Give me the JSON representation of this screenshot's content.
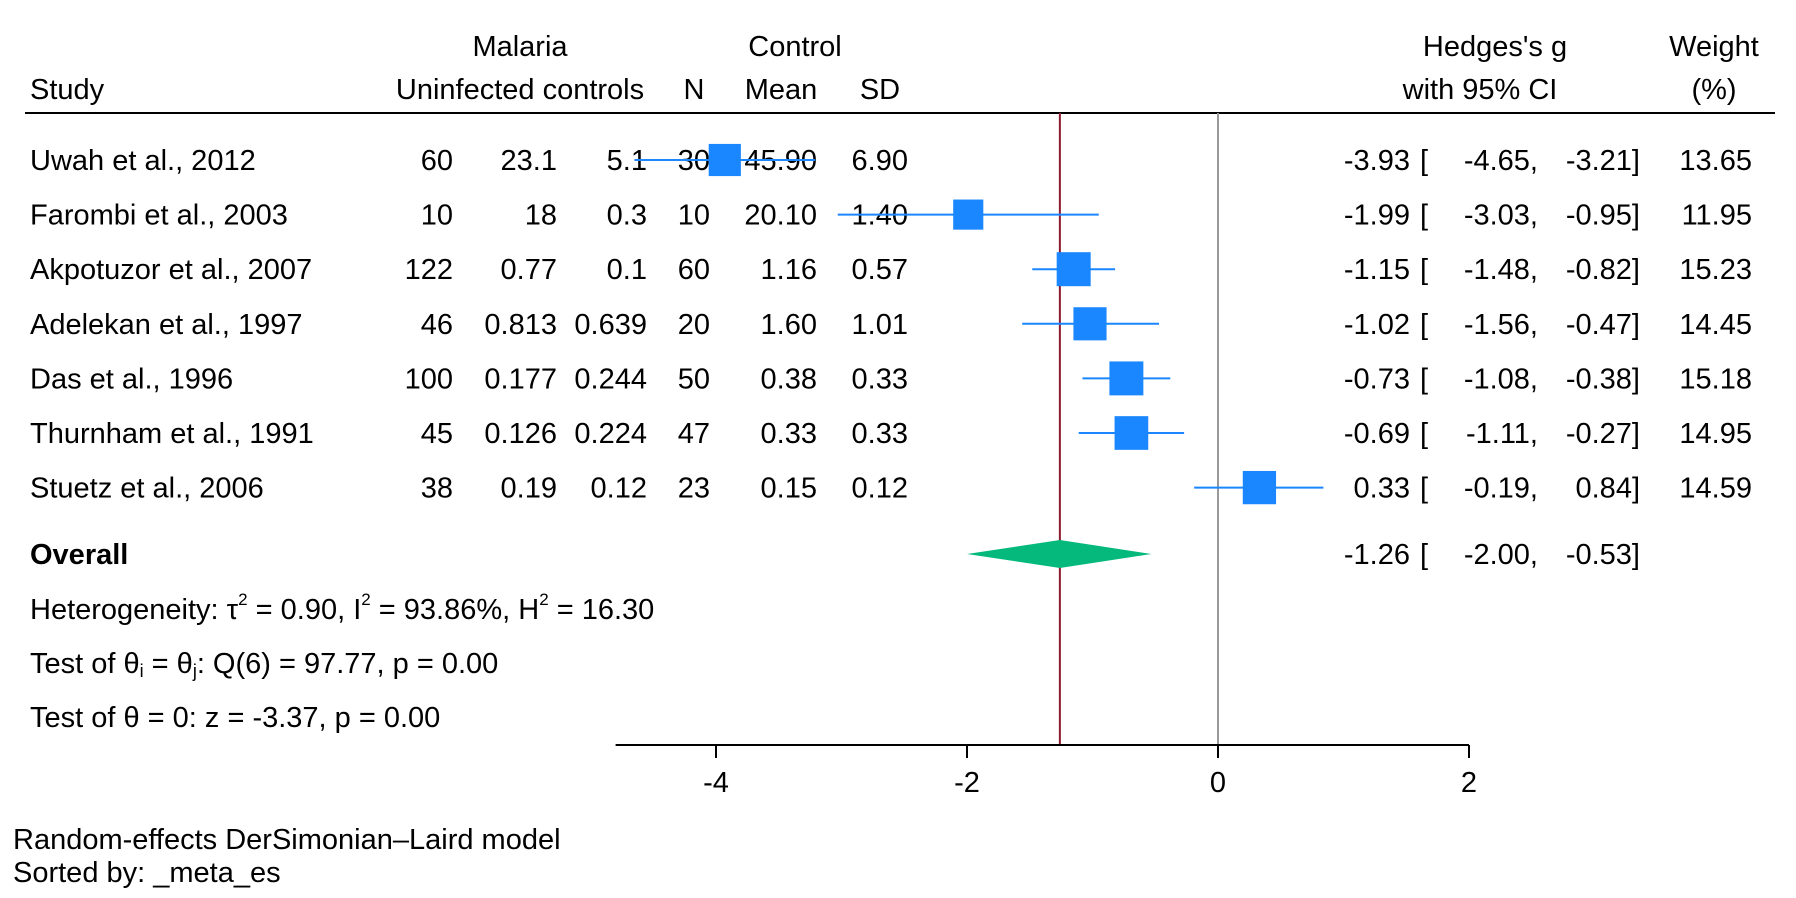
{
  "chart_data": {
    "type": "forest",
    "header": {
      "group1": "Malaria",
      "group2": "Control",
      "study": "Study",
      "col_uninfected": "Uninfected controls",
      "col_n": "N",
      "col_mean": "Mean",
      "col_sd": "SD",
      "effect_line1": "Hedges's g",
      "effect_line2": "with 95% CI",
      "weight_line1": "Weight",
      "weight_line2": "(%)"
    },
    "studies": [
      {
        "study": "Uwah et al., 2012",
        "n1": "60",
        "mean1": "23.1",
        "sd1": "5.1",
        "n2": "30",
        "mean2": "45.90",
        "sd2": "6.90",
        "es": -3.93,
        "lo": -4.65,
        "hi": -3.21,
        "es_text": "-3.93",
        "lo_text": "-4.65,",
        "hi_text": "-3.21]",
        "weight": 13.65,
        "weight_text": "13.65"
      },
      {
        "study": "Farombi et al., 2003",
        "n1": "10",
        "mean1": "18",
        "sd1": "0.3",
        "n2": "10",
        "mean2": "20.10",
        "sd2": "1.40",
        "es": -1.99,
        "lo": -3.03,
        "hi": -0.95,
        "es_text": "-1.99",
        "lo_text": "-3.03,",
        "hi_text": "-0.95]",
        "weight": 11.95,
        "weight_text": "11.95"
      },
      {
        "study": "Akpotuzor et al., 2007",
        "n1": "122",
        "mean1": "0.77",
        "sd1": "0.1",
        "n2": "60",
        "mean2": "1.16",
        "sd2": "0.57",
        "es": -1.15,
        "lo": -1.48,
        "hi": -0.82,
        "es_text": "-1.15",
        "lo_text": "-1.48,",
        "hi_text": "-0.82]",
        "weight": 15.23,
        "weight_text": "15.23"
      },
      {
        "study": "Adelekan et al., 1997",
        "n1": "46",
        "mean1": "0.813",
        "sd1": "0.639",
        "n2": "20",
        "mean2": "1.60",
        "sd2": "1.01",
        "es": -1.02,
        "lo": -1.56,
        "hi": -0.47,
        "es_text": "-1.02",
        "lo_text": "-1.56,",
        "hi_text": "-0.47]",
        "weight": 14.45,
        "weight_text": "14.45"
      },
      {
        "study": "Das et al., 1996",
        "n1": "100",
        "mean1": "0.177",
        "sd1": "0.244",
        "n2": "50",
        "mean2": "0.38",
        "sd2": "0.33",
        "es": -0.73,
        "lo": -1.08,
        "hi": -0.38,
        "es_text": "-0.73",
        "lo_text": "-1.08,",
        "hi_text": "-0.38]",
        "weight": 15.18,
        "weight_text": "15.18"
      },
      {
        "study": "Thurnham et al., 1991",
        "n1": "45",
        "mean1": "0.126",
        "sd1": "0.224",
        "n2": "47",
        "mean2": "0.33",
        "sd2": "0.33",
        "es": -0.69,
        "lo": -1.11,
        "hi": -0.27,
        "es_text": "-0.69",
        "lo_text": "-1.11,",
        "hi_text": "-0.27]",
        "weight": 14.95,
        "weight_text": "14.95"
      },
      {
        "study": "Stuetz et al., 2006",
        "n1": "38",
        "mean1": "0.19",
        "sd1": "0.12",
        "n2": "23",
        "mean2": "0.15",
        "sd2": "0.12",
        "es": 0.33,
        "lo": -0.19,
        "hi": 0.84,
        "es_text": "0.33",
        "lo_text": "-0.19,",
        "hi_text": "0.84]",
        "weight": 14.59,
        "weight_text": "14.59"
      }
    ],
    "overall": {
      "label": "Overall",
      "es": -1.26,
      "lo": -2.0,
      "hi": -0.53,
      "es_text": "-1.26",
      "lo_text": "-2.00,",
      "hi_text": "-0.53]"
    },
    "heterogeneity": {
      "prefix": "Heterogeneity: τ",
      "tau_sup": "2",
      "tau_rest": " = 0.90, I",
      "i_sup": "2",
      "i_rest": " = 93.86%, H",
      "h_sup": "2",
      "h_rest": " = 16.30"
    },
    "test_homogeneity": {
      "part1": "Test of θ",
      "sub_i": "i",
      "part2": " = θ",
      "sub_j": "j",
      "part3": ": Q(6) = 97.77, p = 0.00"
    },
    "test_effect": "Test of θ = 0: z = -3.37, p = 0.00",
    "x_axis": {
      "ticks": [
        -4,
        -2,
        0,
        2
      ],
      "tick_labels": [
        "-4",
        "-2",
        "0",
        "2"
      ],
      "range": [
        -4.8,
        2
      ]
    },
    "footnotes": {
      "model": "Random-effects DerSimonian–Laird model",
      "sorted": "Sorted by: _meta_es"
    },
    "colors": {
      "marker": "#1a86ff",
      "diamond": "#05b97c",
      "overall_line": "#8c1a2e",
      "null_line": "#999999",
      "axis": "#000000"
    }
  }
}
